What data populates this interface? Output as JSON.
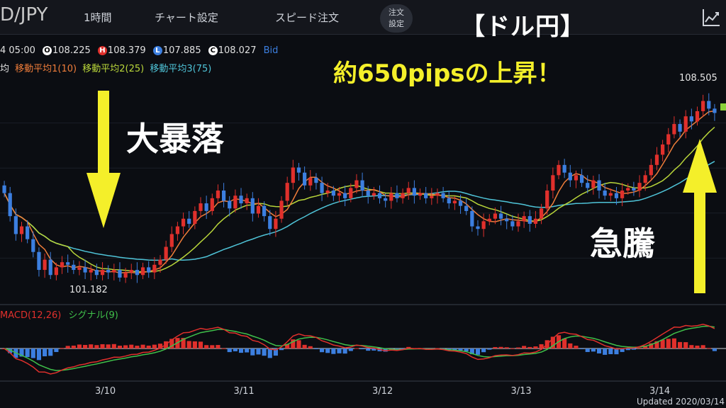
{
  "header": {
    "pair": "D/JPY",
    "menu": [
      "1時間",
      "チャート設定",
      "スピード注文"
    ],
    "order_settings_line1": "注文",
    "order_settings_line2": "設定"
  },
  "ohlc": {
    "time": "4 05:00",
    "open_badge": "O",
    "open": "108.225",
    "high_badge": "H",
    "high": "108.379",
    "low_badge": "L",
    "low": "107.885",
    "close_badge": "C",
    "close": "108.027",
    "price_type": "Bid"
  },
  "ma_legend": {
    "prefix": "均",
    "ma1": "移動平均1(10)",
    "ma2": "移動平均2(25)",
    "ma3": "移動平均3(75)"
  },
  "macd_legend": {
    "macd": "MACD(12,26)",
    "signal": "シグナル(9)"
  },
  "annotations": {
    "title": "【ドル円】",
    "subtitle": "約650pipsの上昇！",
    "crash": "大暴落",
    "surge": "急騰",
    "high_label": "108.505",
    "low_label": "101.182"
  },
  "footer": {
    "updated": "Updated 2020/03/14"
  },
  "colors": {
    "up": "#e0302c",
    "down": "#3c7fe0",
    "ma1": "#ef7d3a",
    "ma2": "#b9d63a",
    "ma3": "#4fc4d8",
    "macd": "#e0302c",
    "signal": "#3fc04a",
    "arrow": "#f4ef2a"
  },
  "chart_data": {
    "type": "candlestick",
    "timeframe": "1時間",
    "x_ticks": [
      "3/10",
      "3/11",
      "3/12",
      "3/13",
      "3/14"
    ],
    "ylim": [
      100.6,
      109.4
    ],
    "price_high": 108.505,
    "price_low": 101.182,
    "closes": [
      104.9,
      104.0,
      103.3,
      103.6,
      103.1,
      102.6,
      101.9,
      102.3,
      101.7,
      102.0,
      102.2,
      102.1,
      101.9,
      102.0,
      101.8,
      101.9,
      101.7,
      101.9,
      101.8,
      101.9,
      101.6,
      101.8,
      101.9,
      101.7,
      102.0,
      101.8,
      102.1,
      102.3,
      102.8,
      103.3,
      103.6,
      103.9,
      103.7,
      104.2,
      104.5,
      104.2,
      104.7,
      105.0,
      104.6,
      104.3,
      104.8,
      104.5,
      104.7,
      104.1,
      104.4,
      104.0,
      103.5,
      103.9,
      104.6,
      105.3,
      105.9,
      105.7,
      105.2,
      105.5,
      105.3,
      104.9,
      105.0,
      104.8,
      104.9,
      104.7,
      105.1,
      105.4,
      105.0,
      104.8,
      104.9,
      104.7,
      104.6,
      104.9,
      104.7,
      104.9,
      105.1,
      104.8,
      104.9,
      104.7,
      104.8,
      104.9,
      104.7,
      104.5,
      104.6,
      104.4,
      104.2,
      103.6,
      103.5,
      103.8,
      103.9,
      104.1,
      103.9,
      103.8,
      103.6,
      103.8,
      104.0,
      103.7,
      103.9,
      104.3,
      105.0,
      105.6,
      106.0,
      105.7,
      105.4,
      105.6,
      105.3,
      105.1,
      105.4,
      105.0,
      104.8,
      104.9,
      104.7,
      105.0,
      105.1,
      105.0,
      105.3,
      105.6,
      106.0,
      106.4,
      106.8,
      107.2,
      107.6,
      107.3,
      107.9,
      107.7,
      108.1,
      108.5,
      108.2,
      108.03
    ],
    "series": [
      {
        "name": "移動平均1(10)"
      },
      {
        "name": "移動平均2(25)"
      },
      {
        "name": "移動平均3(75)"
      },
      {
        "name": "MACD(12,26)"
      },
      {
        "name": "シグナル(9)"
      }
    ]
  }
}
